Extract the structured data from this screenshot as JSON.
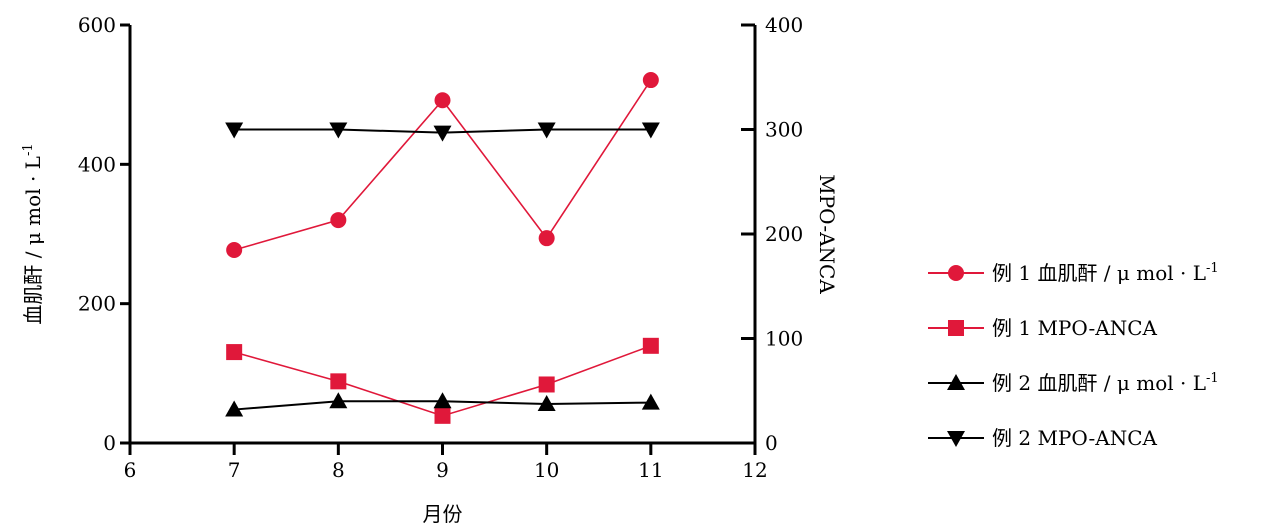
{
  "chart_data": {
    "type": "line",
    "x_label": "月份",
    "y_left_label": "血肌酐 / μ mol · L",
    "y_left_label_sup": "-1",
    "y_right_label": "MPO-ANCA",
    "x_ticks": [
      "6",
      "7",
      "8",
      "9",
      "10",
      "11",
      "12"
    ],
    "y_left_ticks": [
      "0",
      "200",
      "400",
      "600"
    ],
    "y_right_ticks": [
      "0",
      "100",
      "200",
      "300",
      "400"
    ],
    "x_range": [
      6,
      12
    ],
    "y_left_range": [
      0,
      600
    ],
    "y_right_range": [
      0,
      400
    ],
    "grid": false,
    "legend_position": "right",
    "series": [
      {
        "name": "例 1 血肌酐 / μ mol · L",
        "name_sup": "-1",
        "axis": "left",
        "marker": "circle",
        "color": "#e0183a",
        "x": [
          7,
          8,
          9,
          10,
          11
        ],
        "y": [
          277,
          320,
          492,
          294,
          521
        ]
      },
      {
        "name": "例 1 MPO-ANCA",
        "name_sup": "",
        "axis": "right",
        "marker": "square",
        "color": "#e0183a",
        "x": [
          7,
          8,
          9,
          10,
          11
        ],
        "y": [
          87,
          59,
          26,
          56,
          93
        ]
      },
      {
        "name": "例 2 血肌酐 / μ mol · L",
        "name_sup": "-1",
        "axis": "left",
        "marker": "triangle-up",
        "color": "#000000",
        "x": [
          7,
          8,
          9,
          10,
          11
        ],
        "y": [
          48,
          60,
          60,
          56,
          58
        ]
      },
      {
        "name": "例 2 MPO-ANCA",
        "name_sup": "",
        "axis": "right",
        "marker": "triangle-down",
        "color": "#000000",
        "x": [
          7,
          8,
          9,
          10,
          11
        ],
        "y": [
          300,
          300,
          297,
          300,
          300
        ]
      }
    ]
  }
}
